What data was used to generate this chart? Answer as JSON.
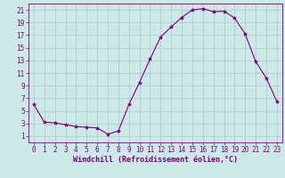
{
  "x": [
    0,
    1,
    2,
    3,
    4,
    5,
    6,
    7,
    8,
    9,
    10,
    11,
    12,
    13,
    14,
    15,
    16,
    17,
    18,
    19,
    20,
    21,
    22,
    23
  ],
  "y": [
    6.0,
    3.2,
    3.1,
    2.8,
    2.5,
    2.4,
    2.3,
    1.3,
    1.8,
    6.0,
    9.5,
    13.2,
    16.7,
    18.3,
    19.8,
    21.0,
    21.2,
    20.7,
    20.8,
    19.7,
    17.2,
    12.8,
    10.2,
    6.5
  ],
  "line_color": "#7b007b",
  "marker": "*",
  "marker_size": 3,
  "bg_color": "#cce8e8",
  "grid_color": "#b0c8c8",
  "xlabel": "Windchill (Refroidissement éolien,°C)",
  "xlim": [
    -0.5,
    23.5
  ],
  "ylim": [
    0,
    22
  ],
  "yticks": [
    1,
    3,
    5,
    7,
    9,
    11,
    13,
    15,
    17,
    19,
    21
  ],
  "xticks": [
    0,
    1,
    2,
    3,
    4,
    5,
    6,
    7,
    8,
    9,
    10,
    11,
    12,
    13,
    14,
    15,
    16,
    17,
    18,
    19,
    20,
    21,
    22,
    23
  ],
  "xlabel_color": "#7b007b",
  "tick_color": "#7b007b",
  "font_size": 5.5,
  "label_font_size": 6.0
}
